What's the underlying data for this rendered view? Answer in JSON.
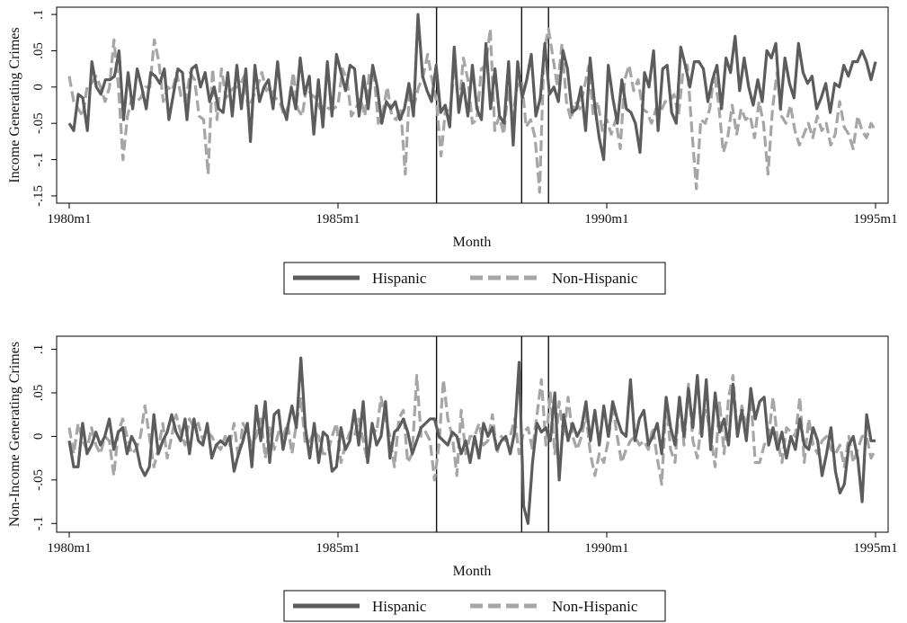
{
  "chart_data": [
    {
      "type": "line",
      "ylabel": "Income Generating Crimes",
      "xlabel": "Month",
      "x_ticks": [
        "1980m1",
        "1985m1",
        "1990m1",
        "1995m1"
      ],
      "x_tick_months": [
        0,
        60,
        120,
        180
      ],
      "xlim": [
        0,
        180
      ],
      "ylim": [
        -0.16,
        0.11
      ],
      "y_ticks": [
        -0.15,
        -0.1,
        -0.05,
        0,
        0.05,
        0.1
      ],
      "y_tick_labels": [
        "-.15",
        "-.1",
        "-.05",
        "0",
        ".05",
        ".1"
      ],
      "vertical_lines_months": [
        82,
        101,
        107
      ],
      "grid": false,
      "legend_position": "bottom",
      "series": [
        {
          "name": "Hispanic",
          "style": "solid",
          "color": "#5c5c5c",
          "values": [
            -0.05,
            -0.06,
            -0.01,
            -0.015,
            -0.06,
            0.035,
            0.0,
            -0.01,
            0.01,
            0.01,
            0.015,
            0.05,
            -0.045,
            0.02,
            -0.03,
            0.025,
            0.0,
            -0.03,
            0.02,
            0.015,
            0.005,
            0.025,
            -0.045,
            -0.01,
            0.025,
            0.02,
            -0.045,
            0.025,
            0.03,
            0.0,
            0.02,
            -0.02,
            0.0,
            -0.03,
            -0.035,
            0.02,
            -0.04,
            0.03,
            -0.03,
            0.025,
            -0.075,
            0.03,
            -0.02,
            0.0,
            0.01,
            -0.03,
            0.035,
            -0.025,
            -0.045,
            0.0,
            -0.03,
            0.04,
            -0.01,
            0.015,
            -0.065,
            0.01,
            -0.055,
            0.035,
            -0.04,
            0.045,
            0.02,
            -0.005,
            0.03,
            0.025,
            -0.04,
            0.015,
            -0.03,
            0.03,
            0.0,
            -0.05,
            -0.02,
            -0.03,
            -0.02,
            -0.045,
            -0.03,
            0.005,
            -0.04,
            0.1,
            0.015,
            -0.005,
            -0.02,
            0.03,
            -0.035,
            -0.025,
            -0.055,
            0.055,
            -0.035,
            0.005,
            -0.04,
            0.03,
            -0.03,
            -0.045,
            0.06,
            -0.03,
            0.025,
            -0.04,
            -0.05,
            0.035,
            -0.08,
            0.035,
            -0.015,
            0.01,
            0.045,
            -0.04,
            -0.015,
            0.06,
            -0.01,
            0.0,
            -0.02,
            0.05,
            0.025,
            -0.035,
            -0.03,
            0.0,
            -0.06,
            0.04,
            -0.025,
            -0.07,
            -0.1,
            0.03,
            -0.015,
            -0.05,
            0.01,
            -0.03,
            -0.035,
            -0.05,
            -0.09,
            0.02,
            0.0,
            0.05,
            -0.06,
            0.025,
            0.03,
            -0.035,
            -0.05,
            0.055,
            0.03,
            0.0,
            0.035,
            0.035,
            0.025,
            -0.02,
            0.01,
            0.03,
            -0.03,
            0.04,
            0.02,
            0.07,
            -0.005,
            0.04,
            0.0,
            -0.025,
            0.01,
            -0.02,
            0.05,
            0.04,
            0.06,
            -0.03,
            0.04,
            0.005,
            -0.015,
            0.06,
            0.02,
            0.005,
            0.015,
            -0.03,
            -0.015,
            0.005,
            -0.035,
            0.005,
            0.0,
            0.03,
            0.015,
            0.035,
            0.035,
            0.05,
            0.035,
            0.01,
            0.035
          ],
          "values_shifted_note": ""
        },
        {
          "name": "Non-Hispanic",
          "style": "dashed",
          "color": "#a6a6a6",
          "values": [
            0.015,
            -0.02,
            -0.03,
            -0.04,
            0.0,
            0.005,
            0.015,
            0.0,
            -0.02,
            0.0,
            0.065,
            0.0,
            -0.1,
            -0.04,
            -0.015,
            -0.02,
            -0.015,
            0.0,
            0.0,
            0.065,
            0.035,
            -0.02,
            0.0,
            -0.005,
            0.02,
            -0.015,
            -0.02,
            0.02,
            0.01,
            -0.04,
            -0.045,
            -0.12,
            0.025,
            -0.045,
            0.025,
            -0.015,
            -0.005,
            0.0,
            0.0,
            0.015,
            -0.03,
            -0.015,
            0.0,
            0.02,
            -0.005,
            0.0,
            -0.015,
            -0.02,
            -0.04,
            -0.025,
            0.02,
            -0.03,
            -0.04,
            0.0,
            -0.01,
            -0.015,
            -0.03,
            -0.025,
            -0.03,
            -0.03,
            -0.025,
            0.025,
            0.01,
            -0.04,
            -0.03,
            -0.015,
            -0.04,
            0.02,
            0.02,
            -0.05,
            -0.035,
            0.0,
            -0.04,
            -0.045,
            -0.03,
            -0.12,
            0.0,
            -0.025,
            0.0,
            0.015,
            0.045,
            0.01,
            -0.02,
            -0.095,
            -0.03,
            -0.035,
            0.03,
            -0.03,
            0.04,
            0.01,
            -0.05,
            -0.045,
            0.025,
            0.03,
            0.08,
            -0.06,
            -0.04,
            -0.065,
            -0.005,
            -0.04,
            0.0,
            0.01,
            -0.055,
            -0.045,
            -0.07,
            -0.145,
            0.05,
            0.08,
            0.04,
            0.0,
            0.06,
            -0.02,
            -0.045,
            -0.02,
            -0.03,
            0.0,
            0.03,
            -0.04,
            -0.02,
            -0.06,
            -0.045,
            -0.065,
            -0.045,
            -0.085,
            0.01,
            0.03,
            -0.005,
            0.01,
            -0.03,
            -0.035,
            -0.05,
            -0.03,
            -0.035,
            -0.02,
            -0.02,
            -0.01,
            -0.04,
            0.02,
            0.03,
            -0.06,
            -0.14,
            -0.045,
            -0.05,
            -0.03,
            0.02,
            -0.025,
            -0.09,
            -0.07,
            -0.025,
            -0.065,
            -0.03,
            -0.045,
            -0.04,
            -0.07,
            -0.02,
            -0.05,
            -0.12,
            -0.03,
            0.02,
            -0.04,
            -0.05,
            -0.025,
            -0.06,
            -0.08,
            -0.065,
            -0.05,
            -0.07,
            -0.04,
            -0.06,
            -0.05,
            -0.08,
            -0.065,
            -0.02,
            -0.055,
            -0.065,
            -0.085,
            -0.04,
            -0.06,
            -0.07,
            -0.05,
            -0.06
          ]
        }
      ]
    },
    {
      "type": "line",
      "ylabel": "Non-Income Generating Crimes",
      "xlabel": "Month",
      "x_ticks": [
        "1980m1",
        "1985m1",
        "1990m1",
        "1995m1"
      ],
      "x_tick_months": [
        0,
        60,
        120,
        180
      ],
      "xlim": [
        0,
        180
      ],
      "ylim": [
        -0.11,
        0.115
      ],
      "y_ticks": [
        -0.1,
        -0.05,
        0,
        0.05,
        0.1
      ],
      "y_tick_labels": [
        "-.1",
        "-.05",
        "0",
        ".05",
        ".1"
      ],
      "vertical_lines_months": [
        82,
        101,
        107
      ],
      "grid": false,
      "legend_position": "bottom",
      "series": [
        {
          "name": "Hispanic",
          "style": "solid",
          "color": "#5c5c5c",
          "values": [
            -0.005,
            -0.035,
            -0.035,
            0.015,
            -0.02,
            -0.01,
            0.005,
            -0.01,
            0.0,
            0.02,
            -0.015,
            0.005,
            0.01,
            -0.02,
            0.0,
            -0.01,
            -0.035,
            -0.045,
            -0.035,
            0.025,
            -0.02,
            -0.005,
            0.005,
            0.025,
            0.005,
            -0.005,
            0.02,
            -0.02,
            0.02,
            -0.005,
            -0.01,
            0.015,
            -0.025,
            -0.01,
            -0.005,
            -0.01,
            0.0,
            -0.04,
            -0.02,
            -0.005,
            0.015,
            -0.035,
            0.035,
            -0.005,
            0.04,
            -0.03,
            0.025,
            0.03,
            -0.015,
            0.01,
            0.035,
            0.01,
            0.09,
            0.01,
            -0.025,
            0.015,
            -0.03,
            0.005,
            0.0,
            -0.04,
            -0.035,
            0.01,
            -0.015,
            -0.005,
            0.03,
            -0.01,
            0.04,
            -0.03,
            0.015,
            -0.01,
            0.0,
            0.04,
            -0.025,
            0.005,
            0.01,
            0.02,
            0.005,
            -0.02,
            -0.005,
            0.01,
            0.015,
            0.02,
            0.02,
            0.0,
            -0.005,
            -0.01,
            0.005,
            0.0,
            -0.02,
            -0.005,
            -0.03,
            0.0,
            -0.025,
            0.015,
            0.0,
            0.01,
            -0.015,
            -0.005,
            0.0,
            -0.02,
            0.005,
            0.085,
            -0.08,
            -0.1,
            -0.03,
            0.015,
            0.005,
            0.01,
            -0.005,
            0.05,
            -0.05,
            0.025,
            -0.005,
            0.015,
            0.0,
            0.01,
            0.04,
            -0.005,
            0.03,
            -0.01,
            0.035,
            0.0,
            0.04,
            0.02,
            0.005,
            0.0,
            0.065,
            -0.005,
            0.02,
            0.03,
            -0.01,
            0.0,
            0.015,
            -0.02,
            0.045,
            0.01,
            -0.01,
            0.045,
            0.0,
            0.055,
            0.01,
            0.07,
            0.0,
            0.065,
            -0.015,
            0.05,
            0.005,
            0.02,
            -0.01,
            0.06,
            0.0,
            0.03,
            -0.005,
            0.055,
            0.02,
            0.04,
            0.045,
            -0.01,
            0.01,
            -0.015,
            0.005,
            -0.025,
            0.0,
            -0.015,
            0.02,
            -0.01,
            -0.015,
            0.01,
            -0.005,
            -0.045,
            -0.02,
            0.01,
            -0.04,
            -0.065,
            -0.055,
            -0.01,
            0.0,
            -0.025,
            -0.075,
            0.025,
            -0.005,
            -0.005
          ]
        },
        {
          "name": "Non-Hispanic",
          "style": "dashed",
          "color": "#a6a6a6",
          "values": [
            0.01,
            -0.02,
            0.015,
            -0.005,
            -0.015,
            0.01,
            -0.01,
            -0.02,
            0.0,
            -0.005,
            -0.045,
            0.005,
            0.02,
            0.0,
            -0.02,
            -0.015,
            0.0,
            0.035,
            0.0,
            -0.035,
            -0.015,
            0.015,
            -0.025,
            0.0,
            0.025,
            0.005,
            -0.01,
            0.02,
            0.01,
            0.015,
            -0.005,
            0.005,
            0.0,
            -0.01,
            -0.015,
            0.0,
            -0.01,
            0.015,
            -0.025,
            0.015,
            0.005,
            -0.01,
            0.0,
            0.02,
            -0.025,
            0.01,
            -0.015,
            0.005,
            0.0,
            0.015,
            -0.02,
            0.015,
            0.045,
            -0.01,
            -0.005,
            0.005,
            0.0,
            -0.02,
            -0.02,
            0.0,
            0.015,
            -0.03,
            -0.01,
            0.005,
            0.0,
            0.02,
            -0.005,
            -0.03,
            0.01,
            0.005,
            0.045,
            0.02,
            0.0,
            -0.035,
            0.02,
            0.03,
            -0.03,
            -0.02,
            0.07,
            0.0,
            0.005,
            -0.005,
            -0.05,
            -0.01,
            0.065,
            0.02,
            0.0,
            -0.045,
            0.03,
            -0.02,
            0.0,
            0.0,
            0.015,
            -0.01,
            -0.005,
            0.025,
            -0.02,
            0.0,
            -0.005,
            0.0,
            0.02,
            -0.02,
            0.005,
            0.01,
            -0.015,
            0.025,
            0.065,
            -0.01,
            0.05,
            -0.02,
            0.04,
            0.0,
            0.045,
            0.0,
            -0.015,
            0.0,
            0.025,
            -0.02,
            -0.045,
            -0.02,
            -0.03,
            -0.005,
            0.035,
            0.0,
            -0.03,
            -0.015,
            -0.005,
            0.0,
            -0.01,
            -0.005,
            -0.015,
            0.01,
            -0.025,
            -0.055,
            0.04,
            -0.015,
            -0.03,
            0.045,
            -0.01,
            0.06,
            -0.005,
            -0.025,
            0.02,
            0.03,
            0.0,
            -0.035,
            0.04,
            -0.02,
            0.045,
            0.07,
            0.0,
            0.035,
            0.01,
            0.045,
            -0.03,
            -0.03,
            -0.01,
            0.0,
            0.045,
            -0.005,
            -0.03,
            0.01,
            0.005,
            0.0,
            0.045,
            -0.03,
            0.02,
            -0.01,
            -0.02,
            -0.005,
            0.0,
            -0.015,
            -0.02,
            -0.01,
            -0.035,
            0.0,
            -0.03,
            -0.015,
            0.0,
            0.0,
            -0.025,
            -0.015
          ]
        }
      ]
    }
  ]
}
